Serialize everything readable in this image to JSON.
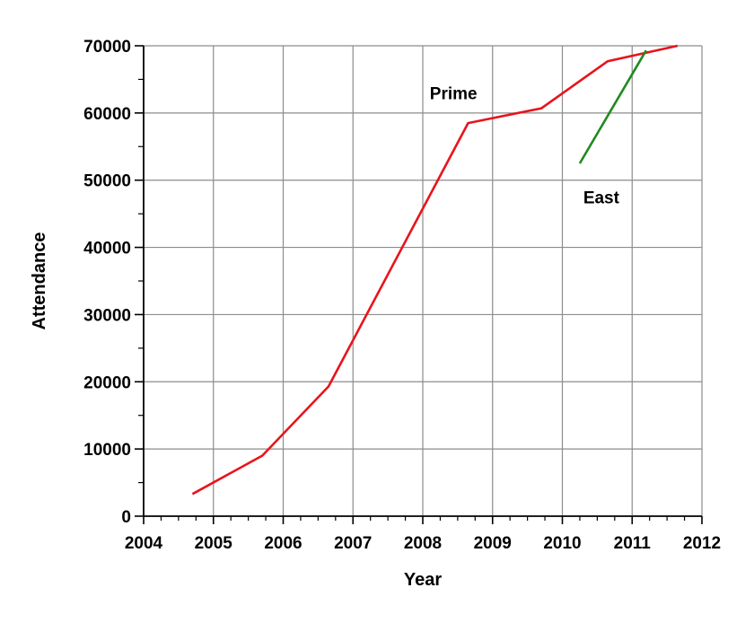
{
  "chart_data": {
    "type": "line",
    "xlabel": "Year",
    "ylabel": "Attendance",
    "xlim": [
      2004,
      2012
    ],
    "ylim": [
      0,
      70000
    ],
    "x_ticks": [
      "2004",
      "2005",
      "2006",
      "2007",
      "2008",
      "2009",
      "2010",
      "2011",
      "2012"
    ],
    "y_ticks": [
      "0",
      "10000",
      "20000",
      "30000",
      "40000",
      "50000",
      "60000",
      "70000"
    ],
    "grid": true,
    "series": [
      {
        "name": "Prime",
        "color": "#e8141c",
        "points": [
          [
            2004.7,
            3300
          ],
          [
            2005.7,
            9000
          ],
          [
            2006.65,
            19300
          ],
          [
            2008.65,
            58500
          ],
          [
            2009.7,
            60700
          ],
          [
            2010.65,
            67700
          ],
          [
            2011.65,
            70000
          ]
        ]
      },
      {
        "name": "East",
        "color": "#1f8a1f",
        "points": [
          [
            2010.25,
            52500
          ],
          [
            2011.2,
            69300
          ]
        ]
      }
    ]
  }
}
